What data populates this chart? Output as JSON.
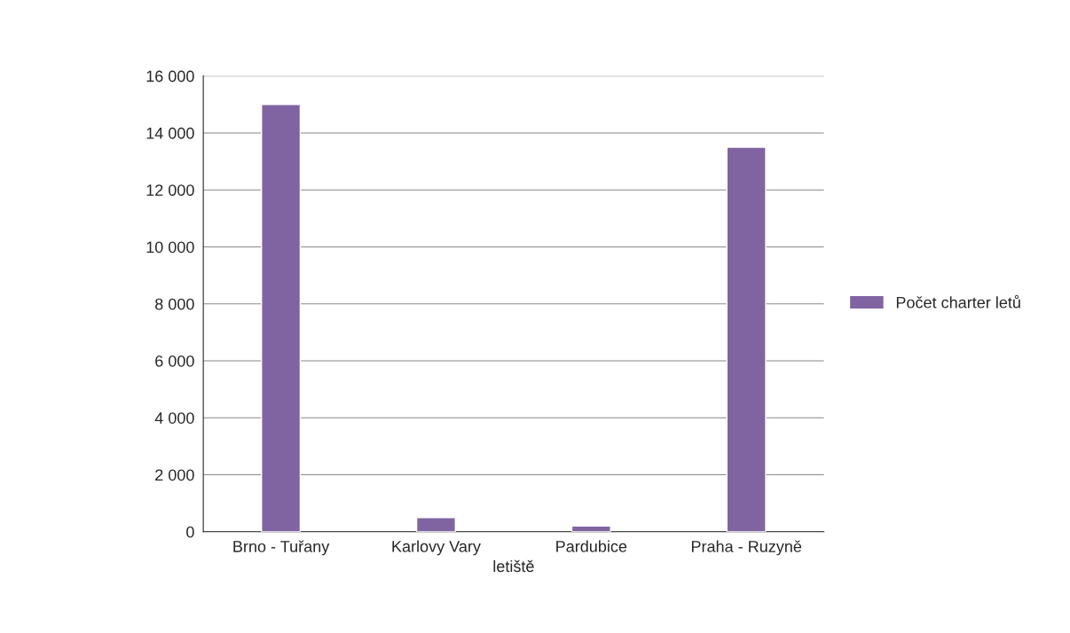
{
  "chart_data": {
    "type": "bar",
    "xlabel": "letiště",
    "categories": [
      "Brno - Tuřany",
      "Karlovy Vary",
      "Pardubice",
      "Praha - Ruzyně"
    ],
    "series": [
      {
        "name": "Počet charter letů",
        "color": "#8064a2",
        "values": [
          15000,
          500,
          200,
          13500
        ]
      }
    ],
    "ylim": [
      0,
      16000
    ],
    "yticks": [
      0,
      {
        "value": 2000,
        "label": "2 000"
      },
      {
        "value": 4000,
        "label": "4 000"
      },
      {
        "value": 6000,
        "label": "6 000"
      },
      {
        "value": 8000,
        "label": "8 000"
      },
      {
        "value": 10000,
        "label": "10 000"
      },
      {
        "value": 12000,
        "label": "12 000"
      },
      {
        "value": 14000,
        "label": "14 000"
      },
      {
        "value": 16000,
        "label": "16 000"
      }
    ],
    "grid": "y",
    "legend": "right"
  }
}
